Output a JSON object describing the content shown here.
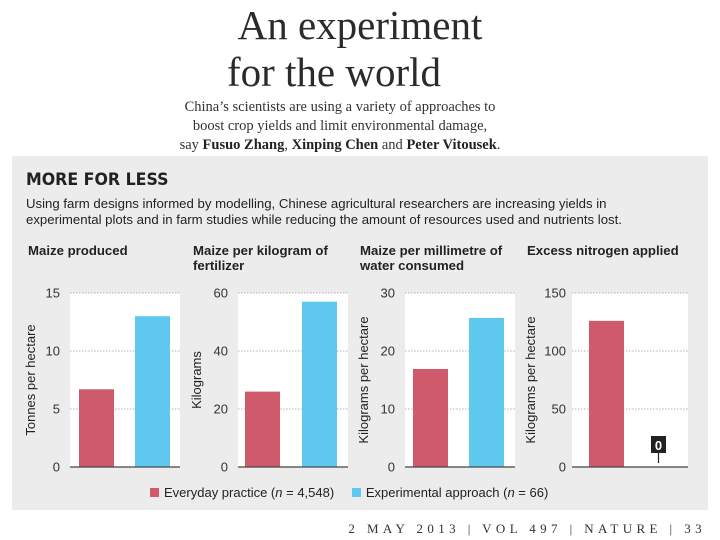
{
  "headline": [
    "An experiment",
    "for the world"
  ],
  "standfirst": {
    "text_line1": "China’s scientists are using a variety of approaches to",
    "text_line2": "boost crop yields and limit environmental damage,",
    "say": "say",
    "author1": "Fusuo Zhang",
    "sep1": ",",
    "author2": "Xinping Chen",
    "and": "and",
    "author3": "Peter Vitousek",
    "end": "."
  },
  "panel": {
    "title": "MORE FOR LESS",
    "description_lines": [
      "Using farm designs informed by modelling, Chinese agricultural researchers are increasing yields in",
      "experimental plots and in farm studies while reducing the amount of resources used and nutrients lost."
    ]
  },
  "colors": {
    "everyday": "#cf5a6b",
    "experimental": "#5fc8ee",
    "grid": "#9a9a9a",
    "panel_bg": "#ececec"
  },
  "chart_data": [
    {
      "type": "bar",
      "title": [
        "Maize produced"
      ],
      "ylabel": "Tonnes per hectare",
      "ylim": [
        0,
        15
      ],
      "yticks": [
        0,
        5,
        10,
        15
      ],
      "series": [
        {
          "name": "Everyday practice",
          "value": 6.7
        },
        {
          "name": "Experimental approach",
          "value": 13.0
        }
      ]
    },
    {
      "type": "bar",
      "title": [
        "Maize per kilogram of",
        "fertilizer"
      ],
      "ylabel": "Kilograms",
      "ylim": [
        0,
        60
      ],
      "yticks": [
        0,
        20,
        40,
        60
      ],
      "series": [
        {
          "name": "Everyday practice",
          "value": 26
        },
        {
          "name": "Experimental approach",
          "value": 57
        }
      ]
    },
    {
      "type": "bar",
      "title": [
        "Maize per millimetre of",
        "water consumed"
      ],
      "ylabel": "Kilograms per hectare",
      "ylim": [
        0,
        30
      ],
      "yticks": [
        0,
        10,
        20,
        30
      ],
      "series": [
        {
          "name": "Everyday practice",
          "value": 16.9
        },
        {
          "name": "Experimental approach",
          "value": 25.7
        }
      ]
    },
    {
      "type": "bar",
      "title": [
        "Excess nitrogen applied"
      ],
      "ylabel": "Kilograms per hectare",
      "ylim": [
        0,
        150
      ],
      "yticks": [
        0,
        50,
        100,
        150
      ],
      "series": [
        {
          "name": "Everyday practice",
          "value": 126
        },
        {
          "name": "Experimental approach",
          "value": 0
        }
      ],
      "annotation": "0"
    }
  ],
  "legend": {
    "everyday": {
      "label": "Everyday practice (",
      "n": "n",
      "rest": " = 4,548)"
    },
    "experimental": {
      "label": "Experimental approach (",
      "n": "n",
      "rest": " = 66)"
    }
  },
  "footer": "2 MAY 2013 | VOL 497 | NATURE | 33"
}
